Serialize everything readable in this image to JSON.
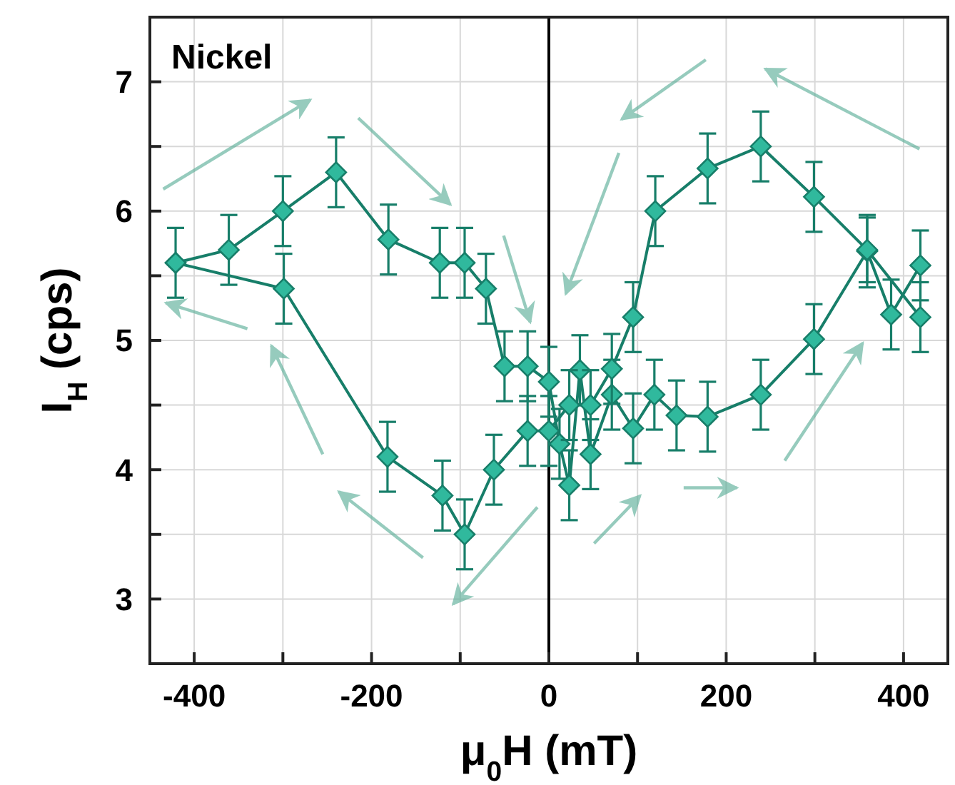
{
  "chart_data": {
    "type": "line",
    "annotations": [
      "Nickel"
    ],
    "xlabel": "μ$_{0}$H (mT)",
    "ylabel": "I$_{H}$ (cps)",
    "xlim": [
      -450,
      450
    ],
    "ylim": [
      2.5,
      7.5
    ],
    "xticks": [
      -400,
      {
        "value": -300,
        "label": null
      },
      -200,
      {
        "value": -100,
        "label": null
      },
      0,
      {
        "value": 100,
        "label": null
      },
      200,
      {
        "value": 300,
        "label": null
      },
      400
    ],
    "yticks": [
      3,
      {
        "value": 3.5,
        "label": null
      },
      4,
      {
        "value": 4.5,
        "label": null
      },
      5,
      {
        "value": 5.5,
        "label": null
      },
      6,
      {
        "value": 6.5,
        "label": null
      },
      7
    ],
    "grid": true,
    "marker": "diamond",
    "line_style": "solid",
    "ref_lines": [
      {
        "axis": "x",
        "value": 0,
        "color": "#000000"
      }
    ],
    "series": [
      {
        "color": "#177e69",
        "x": [
          -421,
          -361,
          -300,
          -240,
          -181,
          -123,
          -95,
          -71,
          -50,
          -24,
          0,
          12,
          23,
          35,
          47,
          71,
          95,
          119,
          144,
          179,
          239,
          299,
          359,
          386,
          419
        ],
        "values": [
          5.6,
          5.7,
          6.0,
          6.3,
          5.78,
          5.6,
          5.6,
          5.4,
          4.8,
          4.8,
          4.68,
          4.2,
          3.88,
          4.77,
          4.12,
          4.58,
          4.32,
          4.58,
          4.42,
          4.41,
          4.58,
          5.01,
          5.69,
          5.2,
          5.58
        ],
        "errors": [
          0.27,
          0.27,
          0.27,
          0.27,
          0.27,
          0.27,
          0.27,
          0.27,
          0.27,
          0.27,
          0.27,
          0.27,
          0.27,
          0.27,
          0.27,
          0.27,
          0.27,
          0.27,
          0.27,
          0.27,
          0.27,
          0.27,
          0.28,
          0.27,
          0.27
        ]
      },
      {
        "color": "#177e69",
        "x": [
          419,
          359,
          299,
          239,
          179,
          120,
          95,
          71,
          47,
          23,
          0,
          -24,
          -62,
          -95,
          -120,
          -182,
          -299,
          -421
        ],
        "values": [
          5.18,
          5.7,
          6.11,
          6.5,
          6.33,
          6.0,
          5.18,
          4.78,
          4.5,
          4.5,
          4.3,
          4.3,
          4.0,
          3.5,
          3.8,
          4.1,
          5.4,
          5.6
        ],
        "errors": [
          0.27,
          0.25,
          0.27,
          0.27,
          0.27,
          0.27,
          0.27,
          0.27,
          0.27,
          0.27,
          0.27,
          0.27,
          0.27,
          0.27,
          0.27,
          0.27,
          0.27,
          null
        ]
      }
    ]
  }
}
